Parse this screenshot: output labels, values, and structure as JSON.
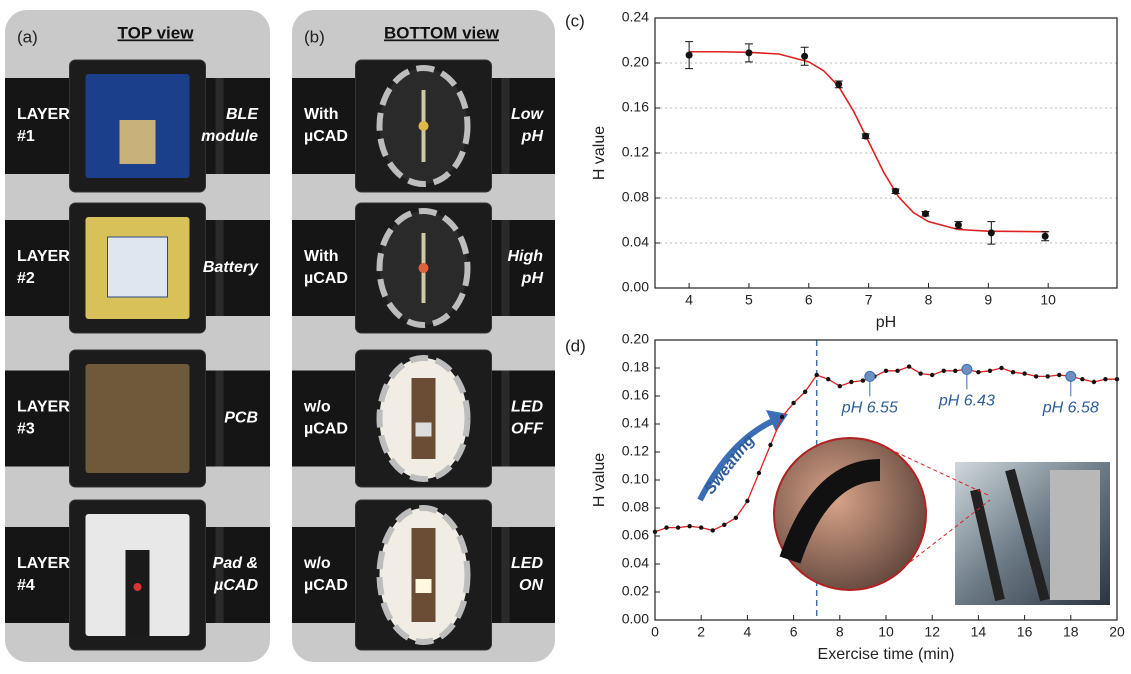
{
  "panels": [
    {
      "label": "(a)",
      "title": "TOP view",
      "rows": [
        {
          "left": [
            "LAYER",
            "#1"
          ],
          "right": [
            "BLE",
            "module"
          ]
        },
        {
          "left": [
            "LAYER",
            "#2"
          ],
          "right": [
            "Battery"
          ]
        },
        {
          "left": [
            "LAYER",
            "#3"
          ],
          "right": [
            "PCB"
          ]
        },
        {
          "left": [
            "LAYER",
            "#4"
          ],
          "right": [
            "Pad &",
            "µCAD"
          ]
        }
      ]
    },
    {
      "label": "(b)",
      "title": "BOTTOM view",
      "rows": [
        {
          "left": [
            "With",
            "µCAD"
          ],
          "right": [
            "Low",
            "pH"
          ]
        },
        {
          "left": [
            "With",
            "µCAD"
          ],
          "right": [
            "High",
            "pH"
          ]
        },
        {
          "left": [
            "w/o",
            "µCAD"
          ],
          "right": [
            "LED",
            "OFF"
          ]
        },
        {
          "left": [
            "w/o",
            "µCAD"
          ],
          "right": [
            "LED",
            "ON"
          ]
        }
      ]
    }
  ],
  "chart_data": [
    {
      "type": "scatter",
      "panel_label": "(c)",
      "x_label": "pH",
      "y_label": "H value",
      "x": [
        4,
        5,
        5.93,
        6.5,
        6.95,
        7.45,
        7.95,
        8.5,
        9.05,
        9.95
      ],
      "values": [
        0.207,
        0.209,
        0.206,
        0.181,
        0.135,
        0.086,
        0.066,
        0.056,
        0.049,
        0.046
      ],
      "errors": [
        0.012,
        0.008,
        0.008,
        0.003,
        0.002,
        0.002,
        0.002,
        0.003,
        0.01,
        0.004
      ],
      "color": "#111111",
      "fit": {
        "color": "#e02020",
        "x": [
          4,
          4.5,
          5,
          5.5,
          6,
          6.25,
          6.5,
          6.75,
          7,
          7.25,
          7.5,
          7.75,
          8,
          8.5,
          9,
          10
        ],
        "values": [
          0.21,
          0.21,
          0.2095,
          0.208,
          0.201,
          0.193,
          0.179,
          0.157,
          0.13,
          0.103,
          0.081,
          0.067,
          0.059,
          0.052,
          0.0505,
          0.05
        ]
      },
      "xlim": [
        3.43,
        11.15
      ],
      "xticks": [
        4,
        5,
        6,
        7,
        8,
        9,
        10
      ],
      "ylim": [
        0,
        0.24
      ],
      "yticks": [
        {
          "value": 0,
          "label": "0.00"
        },
        {
          "value": 0.04,
          "label": "0.04"
        },
        {
          "value": 0.08,
          "label": "0.08"
        },
        {
          "value": 0.12,
          "label": "0.12"
        },
        {
          "value": 0.16,
          "label": "0.16"
        },
        {
          "value": 0.2,
          "label": "0.20"
        },
        {
          "value": 0.24,
          "label": "0.24"
        }
      ],
      "grid": true
    },
    {
      "type": "line",
      "panel_label": "(d)",
      "x_label": "Exercise time (min)",
      "y_label": "H value",
      "x": [
        0,
        0.5,
        1,
        1.5,
        2,
        2.5,
        3,
        3.5,
        4,
        4.5,
        5,
        5.5,
        6,
        6.5,
        7,
        7.5,
        8,
        8.5,
        9,
        9.5,
        10,
        10.5,
        11,
        11.5,
        12,
        12.5,
        13,
        13.5,
        14,
        14.5,
        15,
        15.5,
        16,
        16.5,
        17,
        17.5,
        18,
        18.5,
        19,
        19.5,
        20
      ],
      "values": [
        0.063,
        0.066,
        0.066,
        0.067,
        0.066,
        0.064,
        0.068,
        0.073,
        0.085,
        0.105,
        0.125,
        0.145,
        0.155,
        0.163,
        0.175,
        0.172,
        0.167,
        0.17,
        0.171,
        0.174,
        0.178,
        0.178,
        0.181,
        0.176,
        0.175,
        0.178,
        0.178,
        0.179,
        0.177,
        0.178,
        0.18,
        0.177,
        0.176,
        0.174,
        0.174,
        0.175,
        0.174,
        0.172,
        0.17,
        0.172,
        0.172
      ],
      "color": "#e02020",
      "marker_color": "#111111",
      "vline": 7,
      "vline_color": "#3a6fb5",
      "annotations": [
        {
          "x": 9.3,
          "y": 0.174,
          "text": "pH 6.55"
        },
        {
          "x": 13.5,
          "y": 0.179,
          "text": "pH 6.43"
        },
        {
          "x": 18,
          "y": 0.174,
          "text": "pH 6.58"
        }
      ],
      "arrow_text": "Sweating",
      "xlim": [
        0,
        20
      ],
      "xticks": [
        0,
        2,
        4,
        6,
        8,
        10,
        12,
        14,
        16,
        18,
        20
      ],
      "ylim": [
        0,
        0.2
      ],
      "yticks": [
        {
          "value": 0,
          "label": "0.00"
        },
        {
          "value": 0.02,
          "label": "0.02"
        },
        {
          "value": 0.04,
          "label": "0.04"
        },
        {
          "value": 0.06,
          "label": "0.06"
        },
        {
          "value": 0.08,
          "label": "0.08"
        },
        {
          "value": 0.1,
          "label": "0.10"
        },
        {
          "value": 0.12,
          "label": "0.12"
        },
        {
          "value": 0.14,
          "label": "0.14"
        },
        {
          "value": 0.16,
          "label": "0.16"
        },
        {
          "value": 0.18,
          "label": "0.18"
        },
        {
          "value": 0.2,
          "label": "0.20"
        }
      ],
      "grid": false
    }
  ]
}
